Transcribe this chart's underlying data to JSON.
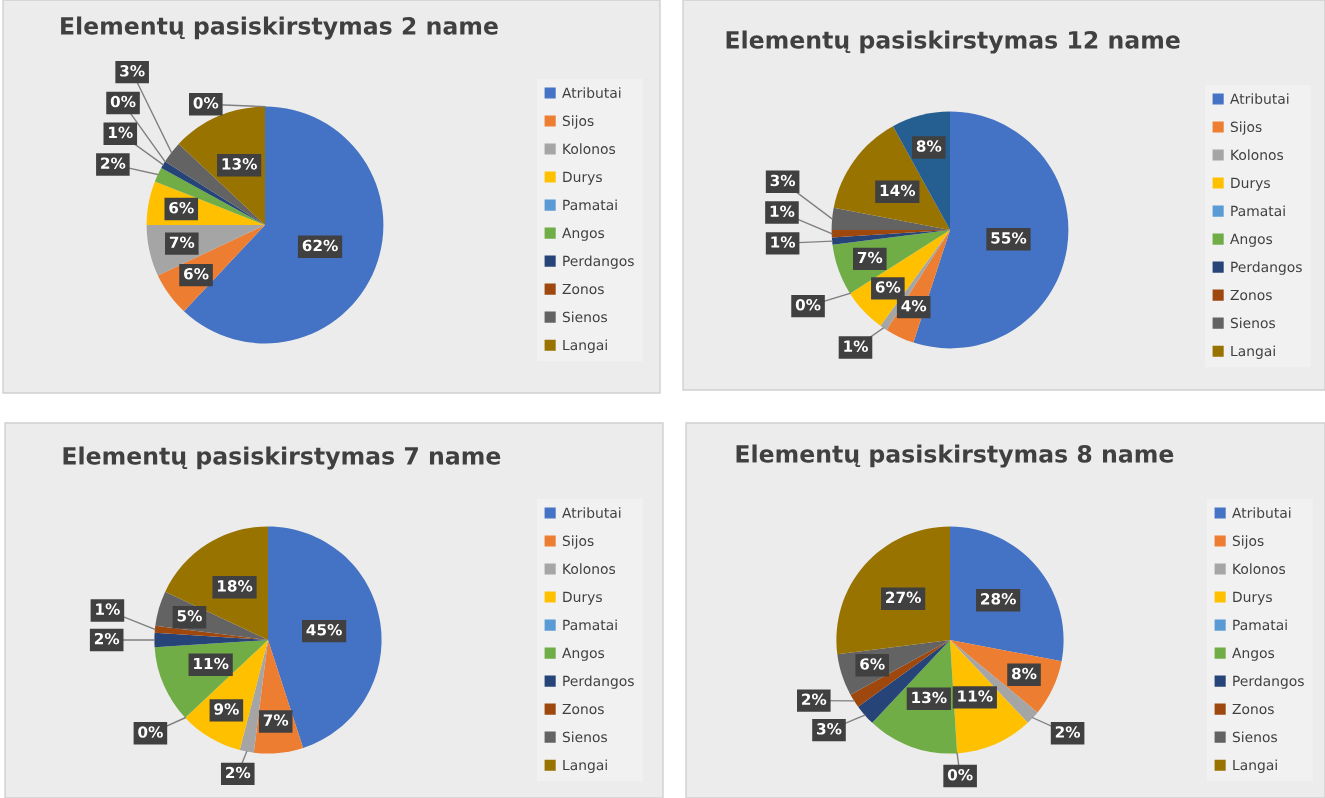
{
  "chart_data": [
    {
      "type": "pie",
      "title": "Elementų pasiskirstymas 2 name",
      "legend": "right",
      "categories": [
        "Atributai",
        "Sijos",
        "Kolonos",
        "Durys",
        "Pamatai",
        "Angos",
        "Perdangos",
        "Zonos",
        "Sienos",
        "Langai",
        null
      ],
      "values": [
        62,
        6,
        7,
        6,
        0,
        2,
        1,
        0,
        3,
        13,
        0
      ],
      "value_labels": [
        "62%",
        "6%",
        "7%",
        "6%",
        null,
        "2%",
        "1%",
        "0%",
        "3%",
        "13%",
        "0%"
      ],
      "colors": [
        "#4472c4",
        "#ed7d31",
        "#a5a5a5",
        "#ffc000",
        "#5b9bd5",
        "#70ad47",
        "#264478",
        "#9e480e",
        "#636363",
        "#997300",
        "#255e91"
      ]
    },
    {
      "type": "pie",
      "title": "Elementų pasiskirstymas 12 name",
      "legend": "right",
      "categories": [
        "Atributai",
        "Sijos",
        "Kolonos",
        "Durys",
        "Pamatai",
        "Angos",
        "Perdangos",
        "Zonos",
        "Sienos",
        "Langai",
        null
      ],
      "values": [
        55,
        4,
        1,
        6,
        0,
        7,
        1,
        1,
        3,
        14,
        8
      ],
      "value_labels": [
        "55%",
        "4%",
        "1%",
        "6%",
        "0%",
        "7%",
        "1%",
        "1%",
        "3%",
        "14%",
        "8%"
      ],
      "colors": [
        "#4472c4",
        "#ed7d31",
        "#a5a5a5",
        "#ffc000",
        "#5b9bd5",
        "#70ad47",
        "#264478",
        "#9e480e",
        "#636363",
        "#997300",
        "#255e91"
      ]
    },
    {
      "type": "pie",
      "title": "Elementų pasiskirstymas 7 name",
      "legend": "right",
      "categories": [
        "Atributai",
        "Sijos",
        "Kolonos",
        "Durys",
        "Pamatai",
        "Angos",
        "Perdangos",
        "Zonos",
        "Sienos",
        "Langai"
      ],
      "values": [
        45,
        7,
        2,
        9,
        0,
        11,
        2,
        1,
        5,
        18
      ],
      "value_labels": [
        "45%",
        "7%",
        "2%",
        "9%",
        "0%",
        "11%",
        "2%",
        "1%",
        "5%",
        "18%"
      ],
      "colors": [
        "#4472c4",
        "#ed7d31",
        "#a5a5a5",
        "#ffc000",
        "#5b9bd5",
        "#70ad47",
        "#264478",
        "#9e480e",
        "#636363",
        "#997300"
      ]
    },
    {
      "type": "pie",
      "title": "Elementų pasiskirstymas 8 name",
      "legend": "right",
      "categories": [
        "Atributai",
        "Sijos",
        "Kolonos",
        "Durys",
        "Pamatai",
        "Angos",
        "Perdangos",
        "Zonos",
        "Sienos",
        "Langai"
      ],
      "values": [
        28,
        8,
        2,
        11,
        0,
        13,
        3,
        2,
        6,
        27
      ],
      "value_labels": [
        "28%",
        "8%",
        "2%",
        "11%",
        "0%",
        "13%",
        "3%",
        "2%",
        "6%",
        "27%"
      ],
      "colors": [
        "#4472c4",
        "#ed7d31",
        "#a5a5a5",
        "#ffc000",
        "#5b9bd5",
        "#70ad47",
        "#264478",
        "#9e480e",
        "#636363",
        "#997300"
      ]
    }
  ]
}
